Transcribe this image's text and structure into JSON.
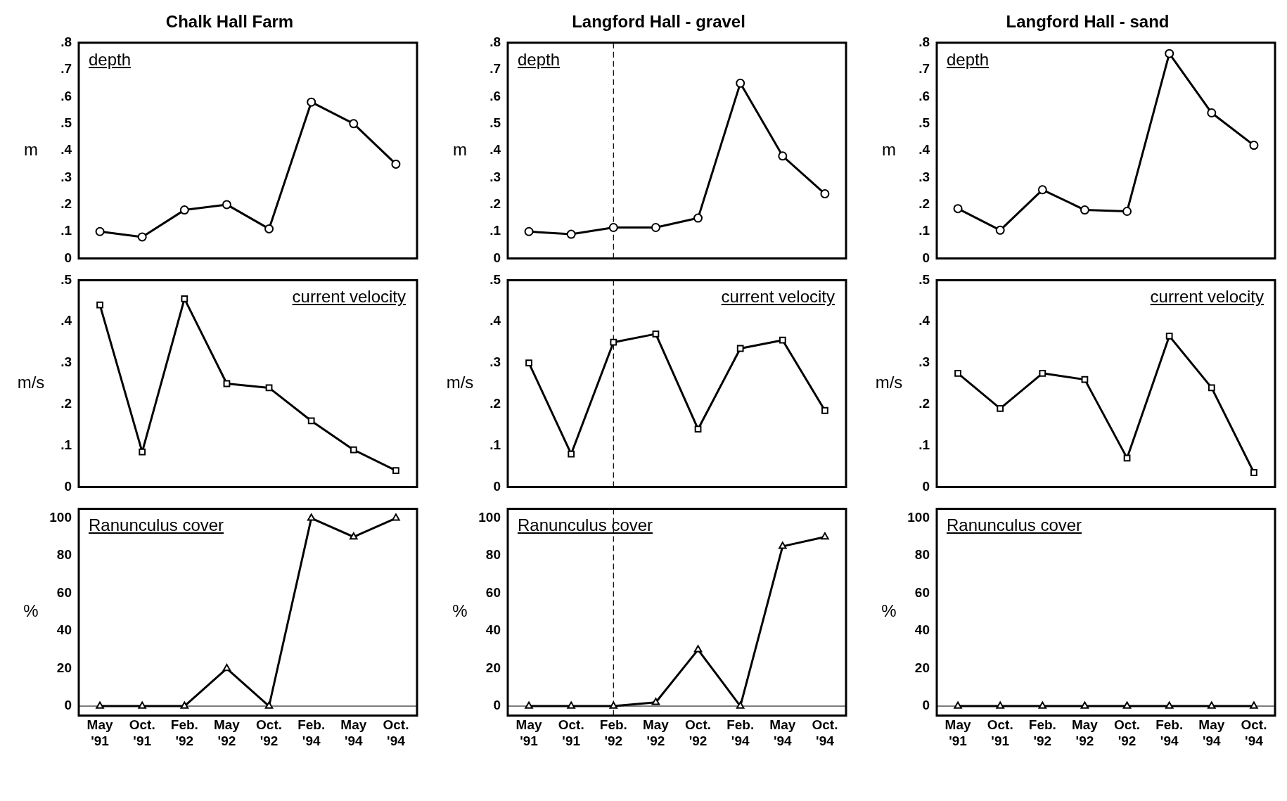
{
  "chart_data": [
    {
      "type": "line",
      "title": "Chalk Hall Farm",
      "ylabel": "m",
      "annotations": [
        "depth"
      ],
      "categories": [
        "May '91",
        "Oct. '91",
        "Feb. '92",
        "May '92",
        "Oct. '92",
        "Feb. '94",
        "May '94",
        "Oct. '94"
      ],
      "series": [
        {
          "color": "#000000",
          "values": [
            0.1,
            0.08,
            0.18,
            0.2,
            0.11,
            0.58,
            0.5,
            0.35
          ]
        }
      ],
      "marker": "circle",
      "ylim": [
        0,
        0.8
      ],
      "yticks": [
        0,
        {
          "value": 0.1,
          "label": ".1"
        },
        {
          "value": 0.2,
          "label": ".2"
        },
        {
          "value": 0.3,
          "label": ".3"
        },
        {
          "value": 0.4,
          "label": ".4"
        },
        {
          "value": 0.5,
          "label": ".5"
        },
        {
          "value": 0.6,
          "label": ".6"
        },
        {
          "value": 0.7,
          "label": ".7"
        },
        {
          "value": 0.8,
          "label": ".8"
        }
      ],
      "tick_labels": "y"
    },
    {
      "type": "line",
      "title": "Langford Hall - gravel",
      "ylabel": "m",
      "annotations": [
        "depth"
      ],
      "categories": [
        "May '91",
        "Oct. '91",
        "Feb. '92",
        "May '92",
        "Oct. '92",
        "Feb. '94",
        "May '94",
        "Oct. '94"
      ],
      "series": [
        {
          "color": "#000000",
          "values": [
            0.1,
            0.09,
            0.115,
            0.115,
            0.15,
            0.65,
            0.38,
            0.24
          ]
        }
      ],
      "marker": "circle",
      "ylim": [
        0,
        0.8
      ],
      "yticks": [
        0,
        {
          "value": 0.1,
          "label": ".1"
        },
        {
          "value": 0.2,
          "label": ".2"
        },
        {
          "value": 0.3,
          "label": ".3"
        },
        {
          "value": 0.4,
          "label": ".4"
        },
        {
          "value": 0.5,
          "label": ".5"
        },
        {
          "value": 0.6,
          "label": ".6"
        },
        {
          "value": 0.7,
          "label": ".7"
        },
        {
          "value": 0.8,
          "label": ".8"
        }
      ],
      "tick_labels": "y",
      "ref_lines": [
        {
          "axis": "x",
          "value": "Feb. '92",
          "line_style": "dashed",
          "color": "#000000"
        }
      ]
    },
    {
      "type": "line",
      "title": "Langford Hall - sand",
      "ylabel": "m",
      "annotations": [
        "depth"
      ],
      "categories": [
        "May '91",
        "Oct. '91",
        "Feb. '92",
        "May '92",
        "Oct. '92",
        "Feb. '94",
        "May '94",
        "Oct. '94"
      ],
      "series": [
        {
          "color": "#000000",
          "values": [
            0.185,
            0.105,
            0.255,
            0.18,
            0.175,
            0.76,
            0.54,
            0.42
          ]
        }
      ],
      "marker": "circle",
      "ylim": [
        0,
        0.8
      ],
      "yticks": [
        0,
        {
          "value": 0.1,
          "label": ".1"
        },
        {
          "value": 0.2,
          "label": ".2"
        },
        {
          "value": 0.3,
          "label": ".3"
        },
        {
          "value": 0.4,
          "label": ".4"
        },
        {
          "value": 0.5,
          "label": ".5"
        },
        {
          "value": 0.6,
          "label": ".6"
        },
        {
          "value": 0.7,
          "label": ".7"
        },
        {
          "value": 0.8,
          "label": ".8"
        }
      ],
      "tick_labels": "y"
    },
    {
      "type": "line",
      "ylabel": "m/s",
      "annotations": [
        "current velocity"
      ],
      "categories": [
        "May '91",
        "Oct. '91",
        "Feb. '92",
        "May '92",
        "Oct. '92",
        "Feb. '94",
        "May '94",
        "Oct. '94"
      ],
      "series": [
        {
          "color": "#000000",
          "values": [
            0.44,
            0.085,
            0.455,
            0.25,
            0.24,
            0.16,
            0.09,
            0.04
          ]
        }
      ],
      "marker": "square",
      "ylim": [
        0,
        0.5
      ],
      "yticks": [
        0,
        {
          "value": 0.1,
          "label": ".1"
        },
        {
          "value": 0.2,
          "label": ".2"
        },
        {
          "value": 0.3,
          "label": ".3"
        },
        {
          "value": 0.4,
          "label": ".4"
        },
        {
          "value": 0.5,
          "label": ".5"
        }
      ],
      "tick_labels": "y"
    },
    {
      "type": "line",
      "ylabel": "m/s",
      "annotations": [
        "current velocity"
      ],
      "categories": [
        "May '91",
        "Oct. '91",
        "Feb. '92",
        "May '92",
        "Oct. '92",
        "Feb. '94",
        "May '94",
        "Oct. '94"
      ],
      "series": [
        {
          "color": "#000000",
          "values": [
            0.3,
            0.08,
            0.35,
            0.37,
            0.14,
            0.335,
            0.355,
            0.185
          ]
        }
      ],
      "marker": "square",
      "ylim": [
        0,
        0.5
      ],
      "yticks": [
        0,
        {
          "value": 0.1,
          "label": ".1"
        },
        {
          "value": 0.2,
          "label": ".2"
        },
        {
          "value": 0.3,
          "label": ".3"
        },
        {
          "value": 0.4,
          "label": ".4"
        },
        {
          "value": 0.5,
          "label": ".5"
        }
      ],
      "tick_labels": "y",
      "ref_lines": [
        {
          "axis": "x",
          "value": "Feb. '92",
          "line_style": "dashed",
          "color": "#000000"
        }
      ]
    },
    {
      "type": "line",
      "ylabel": "m/s",
      "annotations": [
        "current velocity"
      ],
      "categories": [
        "May '91",
        "Oct. '91",
        "Feb. '92",
        "May '92",
        "Oct. '92",
        "Feb. '94",
        "May '94",
        "Oct. '94"
      ],
      "series": [
        {
          "color": "#000000",
          "values": [
            0.275,
            0.19,
            0.275,
            0.26,
            0.07,
            0.365,
            0.24,
            0.035
          ]
        }
      ],
      "marker": "square",
      "ylim": [
        0,
        0.5
      ],
      "yticks": [
        0,
        {
          "value": 0.1,
          "label": ".1"
        },
        {
          "value": 0.2,
          "label": ".2"
        },
        {
          "value": 0.3,
          "label": ".3"
        },
        {
          "value": 0.4,
          "label": ".4"
        },
        {
          "value": 0.5,
          "label": ".5"
        }
      ],
      "tick_labels": "y"
    },
    {
      "type": "line",
      "ylabel": "%",
      "annotations": [
        "Ranunculus cover"
      ],
      "categories": [
        "May '91",
        "Oct. '91",
        "Feb. '92",
        "May '92",
        "Oct. '92",
        "Feb. '94",
        "May '94",
        "Oct. '94"
      ],
      "series": [
        {
          "color": "#000000",
          "values": [
            0,
            0,
            0,
            20,
            0,
            100,
            90,
            100
          ]
        }
      ],
      "marker": "triangle",
      "ylim": [
        -5,
        105
      ],
      "yticks": [
        0,
        20,
        40,
        60,
        80,
        100
      ],
      "ref_lines": [
        {
          "axis": "y",
          "value": 0,
          "color": "#000000"
        }
      ]
    },
    {
      "type": "line",
      "ylabel": "%",
      "annotations": [
        "Ranunculus cover"
      ],
      "categories": [
        "May '91",
        "Oct. '91",
        "Feb. '92",
        "May '92",
        "Oct. '92",
        "Feb. '94",
        "May '94",
        "Oct. '94"
      ],
      "series": [
        {
          "color": "#000000",
          "values": [
            0,
            0,
            0,
            2,
            30,
            0,
            85,
            90
          ]
        }
      ],
      "marker": "triangle",
      "ylim": [
        -5,
        105
      ],
      "yticks": [
        0,
        20,
        40,
        60,
        80,
        100
      ],
      "ref_lines": [
        {
          "axis": "y",
          "value": 0,
          "color": "#000000"
        },
        {
          "axis": "x",
          "value": "Feb. '92",
          "line_style": "dashed",
          "color": "#000000"
        }
      ]
    },
    {
      "type": "line",
      "ylabel": "%",
      "annotations": [
        "Ranunculus cover"
      ],
      "categories": [
        "May '91",
        "Oct. '91",
        "Feb. '92",
        "May '92",
        "Oct. '92",
        "Feb. '94",
        "May '94",
        "Oct. '94"
      ],
      "series": [
        {
          "color": "#000000",
          "values": [
            0,
            0,
            0,
            0,
            0,
            0,
            0,
            0
          ]
        }
      ],
      "marker": "triangle",
      "ylim": [
        -5,
        105
      ],
      "yticks": [
        0,
        20,
        40,
        60,
        80,
        100
      ],
      "ref_lines": [
        {
          "axis": "y",
          "value": 0,
          "color": "#000000"
        }
      ]
    }
  ]
}
